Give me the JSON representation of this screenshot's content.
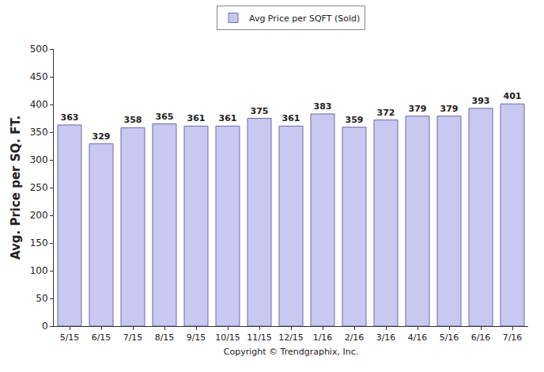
{
  "chart_data": {
    "type": "bar",
    "categories": [
      "5/15",
      "6/15",
      "7/15",
      "8/15",
      "9/15",
      "10/15",
      "11/15",
      "12/15",
      "1/16",
      "2/16",
      "3/16",
      "4/16",
      "5/16",
      "6/16",
      "7/16"
    ],
    "series": [
      {
        "name": "Avg Price per SQFT (Sold)",
        "color": "#c8c8f0",
        "values": [
          363,
          329,
          358,
          365,
          361,
          361,
          375,
          361,
          383,
          359,
          372,
          379,
          379,
          393,
          401
        ]
      }
    ],
    "ylabel": "Avg. Price per SQ. FT.",
    "xlabel": "Copyright © Trendgraphix, Inc.",
    "ylim": [
      0,
      500
    ],
    "yticks": [
      0,
      50,
      100,
      150,
      200,
      250,
      300,
      350,
      400,
      450,
      500
    ],
    "grid": false,
    "legend": "top",
    "data_labels": true
  }
}
